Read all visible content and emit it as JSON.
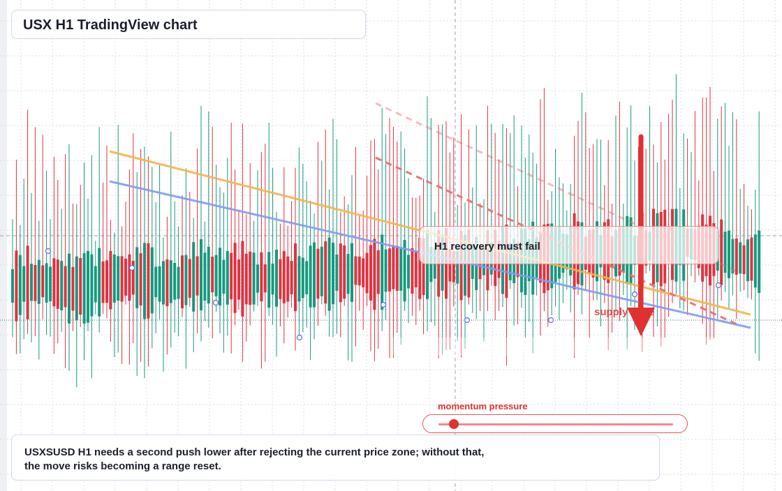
{
  "title": "USX H1 TradingView chart",
  "callout": {
    "text": "H1 recovery must fail"
  },
  "zone_label": "supply zone",
  "momentum": {
    "label": "momentum pressure",
    "level": 0.08
  },
  "note": {
    "line1": "USXSUSD H1 needs a second push lower after rejecting the current price zone; without that,",
    "line2": "the move risks becoming a range reset."
  },
  "colors": {
    "bull": "#16997e",
    "bear": "#e0323f",
    "trend_orange": "#f6b34a",
    "trend_blue": "#7f9cf2",
    "trend_red_dashed": "#e96f6f",
    "accent_red": "#e03131",
    "grid": "#d9dde6"
  },
  "chart_data": {
    "type": "candlestick",
    "timeframe": "H1",
    "grid": true,
    "x_ticks": [],
    "y_ticks": [],
    "ohlc_relative": [
      [
        "up",
        0.47,
        0.53
      ],
      [
        "up",
        0.46,
        0.52
      ],
      [
        "dn",
        0.47,
        0.52
      ],
      [
        "up",
        0.46,
        0.53
      ],
      [
        "dn",
        0.46,
        0.52
      ],
      [
        "up",
        0.46,
        0.53
      ],
      [
        "dn",
        0.45,
        0.52
      ],
      [
        "up",
        0.45,
        0.52
      ],
      [
        "up",
        0.46,
        0.53
      ],
      [
        "up",
        0.45,
        0.52
      ],
      [
        "dn",
        0.45,
        0.52
      ],
      [
        "up",
        0.46,
        0.52
      ],
      [
        "dn",
        0.46,
        0.53
      ],
      [
        "up",
        0.45,
        0.52
      ],
      [
        "dn",
        0.45,
        0.51
      ],
      [
        "up",
        0.46,
        0.52
      ],
      [
        "up",
        0.46,
        0.53
      ],
      [
        "dn",
        0.45,
        0.52
      ],
      [
        "up",
        0.43,
        0.52
      ],
      [
        "dn",
        0.42,
        0.51
      ],
      [
        "up",
        0.43,
        0.5
      ],
      [
        "dn",
        0.43,
        0.5
      ],
      [
        "dn",
        0.44,
        0.5
      ],
      [
        "up",
        0.42,
        0.5
      ],
      [
        "dn",
        0.42,
        0.49
      ],
      [
        "up",
        0.4,
        0.48
      ],
      [
        "dn",
        0.39,
        0.47
      ],
      [
        "up",
        0.38,
        0.47
      ],
      [
        "dn",
        0.39,
        0.46
      ],
      [
        "up",
        0.36,
        0.45
      ],
      [
        "dn",
        0.36,
        0.44
      ],
      [
        "up",
        0.36,
        0.45
      ],
      [
        "up",
        0.41,
        0.46
      ],
      [
        "dn",
        0.42,
        0.46
      ],
      [
        "up",
        0.39,
        0.44
      ],
      [
        "dn",
        0.4,
        0.44
      ],
      [
        "up",
        0.42,
        0.46
      ],
      [
        "dn",
        0.42,
        0.47
      ],
      [
        "up",
        0.41,
        0.45
      ],
      [
        "up",
        0.42,
        0.47
      ],
      [
        "dn",
        0.43,
        0.46
      ],
      [
        "up",
        0.42,
        0.47
      ],
      [
        "dn",
        0.43,
        0.48
      ],
      [
        "up",
        0.42,
        0.46
      ],
      [
        "up",
        0.44,
        0.48
      ],
      [
        "dn",
        0.41,
        0.46
      ],
      [
        "up",
        0.4,
        0.44
      ],
      [
        "dn",
        0.4,
        0.44
      ],
      [
        "up",
        0.41,
        0.46
      ],
      [
        "dn",
        0.38,
        0.45
      ],
      [
        "up",
        0.39,
        0.44
      ],
      [
        "dn",
        0.4,
        0.44
      ],
      [
        "up",
        0.38,
        0.43
      ],
      [
        "up",
        0.36,
        0.41
      ],
      [
        "dn",
        0.35,
        0.41
      ],
      [
        "up",
        0.36,
        0.4
      ],
      [
        "dn",
        0.34,
        0.4
      ],
      [
        "up",
        0.33,
        0.39
      ],
      [
        "dn",
        0.33,
        0.38
      ],
      [
        "up",
        0.32,
        0.37
      ],
      [
        "up",
        0.3,
        0.37
      ],
      [
        "dn",
        0.35,
        0.38
      ],
      [
        "up",
        0.34,
        0.38
      ],
      [
        "dn",
        0.31,
        0.37
      ],
      [
        "up",
        0.3,
        0.36
      ],
      [
        "dn",
        0.28,
        0.36
      ],
      [
        "up",
        0.27,
        0.34
      ],
      [
        "up",
        0.22,
        0.33
      ],
      [
        "dn",
        0.2,
        0.31
      ],
      [
        "up",
        0.18,
        0.29
      ],
      [
        "up",
        0.15,
        0.27
      ],
      [
        "dn",
        0.1,
        0.26
      ],
      [
        "up",
        0.05,
        0.22
      ],
      [
        "dn",
        0.0,
        0.12
      ]
    ],
    "overlays": [
      {
        "kind": "trendline",
        "color": "orange",
        "style": "solid"
      },
      {
        "kind": "trendline",
        "color": "blue",
        "style": "solid"
      },
      {
        "kind": "trendline",
        "color": "red",
        "style": "dashed"
      },
      {
        "kind": "trendline",
        "color": "red",
        "style": "dashed",
        "opacity": "faint"
      },
      {
        "kind": "arrow",
        "direction": "down",
        "color": "red"
      }
    ]
  }
}
